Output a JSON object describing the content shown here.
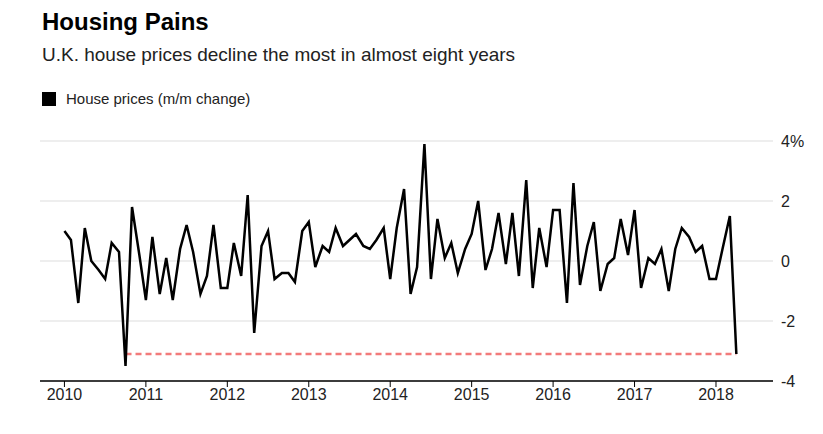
{
  "chart_data": {
    "type": "line",
    "title": "Housing Pains",
    "subtitle": "U.K. house prices decline the most in almost eight years",
    "x": [
      2010,
      2010.08,
      2010.17,
      2010.25,
      2010.33,
      2010.42,
      2010.5,
      2010.58,
      2010.67,
      2010.75,
      2010.83,
      2010.92,
      2011,
      2011.08,
      2011.17,
      2011.25,
      2011.33,
      2011.42,
      2011.5,
      2011.58,
      2011.67,
      2011.75,
      2011.83,
      2011.92,
      2012,
      2012.08,
      2012.17,
      2012.25,
      2012.33,
      2012.42,
      2012.5,
      2012.58,
      2012.67,
      2012.75,
      2012.83,
      2012.92,
      2013,
      2013.08,
      2013.17,
      2013.25,
      2013.33,
      2013.42,
      2013.5,
      2013.58,
      2013.67,
      2013.75,
      2013.83,
      2013.92,
      2014,
      2014.08,
      2014.17,
      2014.25,
      2014.33,
      2014.42,
      2014.5,
      2014.58,
      2014.67,
      2014.75,
      2014.83,
      2014.92,
      2015,
      2015.08,
      2015.17,
      2015.25,
      2015.33,
      2015.42,
      2015.5,
      2015.58,
      2015.67,
      2015.75,
      2015.83,
      2015.92,
      2016,
      2016.08,
      2016.17,
      2016.25,
      2016.33,
      2016.42,
      2016.5,
      2016.58,
      2016.67,
      2016.75,
      2016.83,
      2016.92,
      2017,
      2017.08,
      2017.17,
      2017.25,
      2017.33,
      2017.42,
      2017.5,
      2017.58,
      2017.67,
      2017.75,
      2017.83,
      2017.92,
      2018,
      2018.08,
      2018.17,
      2018.25
    ],
    "series": [
      {
        "name": "House prices (m/m change)",
        "color": "#000000",
        "values": [
          1.0,
          0.7,
          -1.4,
          1.1,
          0,
          -0.3,
          -0.6,
          0.6,
          0.3,
          -3.5,
          1.8,
          0.2,
          -1.3,
          0.8,
          -1.1,
          0.1,
          -1.3,
          0.4,
          1.2,
          0.3,
          -1.1,
          -0.5,
          1.2,
          -0.9,
          -0.9,
          0.6,
          -0.5,
          2.2,
          -2.4,
          0.5,
          1.0,
          -0.6,
          -0.4,
          -0.4,
          -0.7,
          1.0,
          1.3,
          -0.2,
          0.5,
          0.3,
          1.1,
          0.5,
          0.7,
          0.9,
          0.5,
          0.4,
          0.7,
          1.1,
          -0.6,
          1.1,
          2.4,
          -1.1,
          -0.2,
          3.9,
          -0.6,
          1.4,
          0.1,
          0.6,
          -0.4,
          0.4,
          0.9,
          2.0,
          -0.3,
          0.4,
          1.6,
          -0.1,
          1.6,
          -0.5,
          2.7,
          -0.9,
          1.1,
          -0.2,
          1.7,
          1.7,
          -1.4,
          2.6,
          -0.8,
          0.5,
          1.3,
          -1.0,
          -0.1,
          0.1,
          1.4,
          0.2,
          1.7,
          -0.9,
          0.1,
          -0.1,
          0.4,
          -1.0,
          0.4,
          1.1,
          0.8,
          0.3,
          0.5,
          -0.6,
          -0.6,
          0.4,
          1.5,
          -3.1
        ]
      }
    ],
    "xlim": [
      2009.7,
      2018.7
    ],
    "xticks": [
      2010,
      2011,
      2012,
      2013,
      2014,
      2015,
      2016,
      2017,
      2018
    ],
    "ylim": [
      -4,
      4
    ],
    "yticks": [
      -4,
      -2,
      0,
      2,
      {
        "value": 4,
        "label": "4%"
      }
    ],
    "reference_line": {
      "y": -3.1,
      "x": [
        2010.75,
        2018.25
      ],
      "color": "#f27b7b",
      "line_style": "dashed"
    },
    "grid": true,
    "legend": "top left"
  }
}
